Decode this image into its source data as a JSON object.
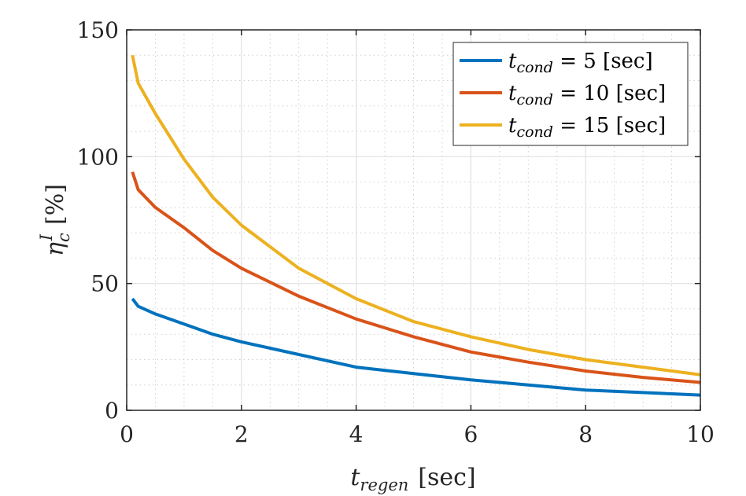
{
  "chart_data": {
    "type": "line",
    "title": "",
    "xlabel": {
      "main": "t",
      "sub": "regen",
      "unit": "[sec]"
    },
    "ylabel": {
      "main": "η",
      "sub": "c",
      "sup": "I",
      "unit": "[%]"
    },
    "xlim": [
      0,
      10
    ],
    "ylim": [
      0,
      150
    ],
    "xticks": [
      0,
      2,
      4,
      6,
      8,
      10
    ],
    "yticks": [
      0,
      50,
      100,
      150
    ],
    "grid": true,
    "minor_grid": true,
    "legend_position": "top-right",
    "x": [
      0.1,
      0.2,
      0.5,
      1,
      1.5,
      2,
      3,
      4,
      5,
      6,
      7,
      8,
      9,
      10
    ],
    "series": [
      {
        "name": "t_cond = 5 [sec]",
        "label_main": "t",
        "label_sub": "cond",
        "label_rest": " = 5 [sec]",
        "color": "#0072BD",
        "values": [
          44,
          41,
          38,
          34,
          30,
          27,
          22,
          17,
          14.5,
          12,
          10,
          8,
          7,
          6
        ]
      },
      {
        "name": "t_cond = 10 [sec]",
        "label_main": "t",
        "label_sub": "cond",
        "label_rest": " = 10 [sec]",
        "color": "#D95319",
        "values": [
          94,
          87,
          80,
          72,
          63,
          56,
          45,
          36,
          29,
          23,
          19,
          15.5,
          13,
          11
        ]
      },
      {
        "name": "t_cond = 15 [sec]",
        "label_main": "t",
        "label_sub": "cond",
        "label_rest": " = 15 [sec]",
        "color": "#EDB120",
        "values": [
          140,
          129,
          117,
          99,
          84,
          73,
          56,
          44,
          35,
          29,
          24,
          20,
          17,
          14
        ]
      }
    ]
  }
}
